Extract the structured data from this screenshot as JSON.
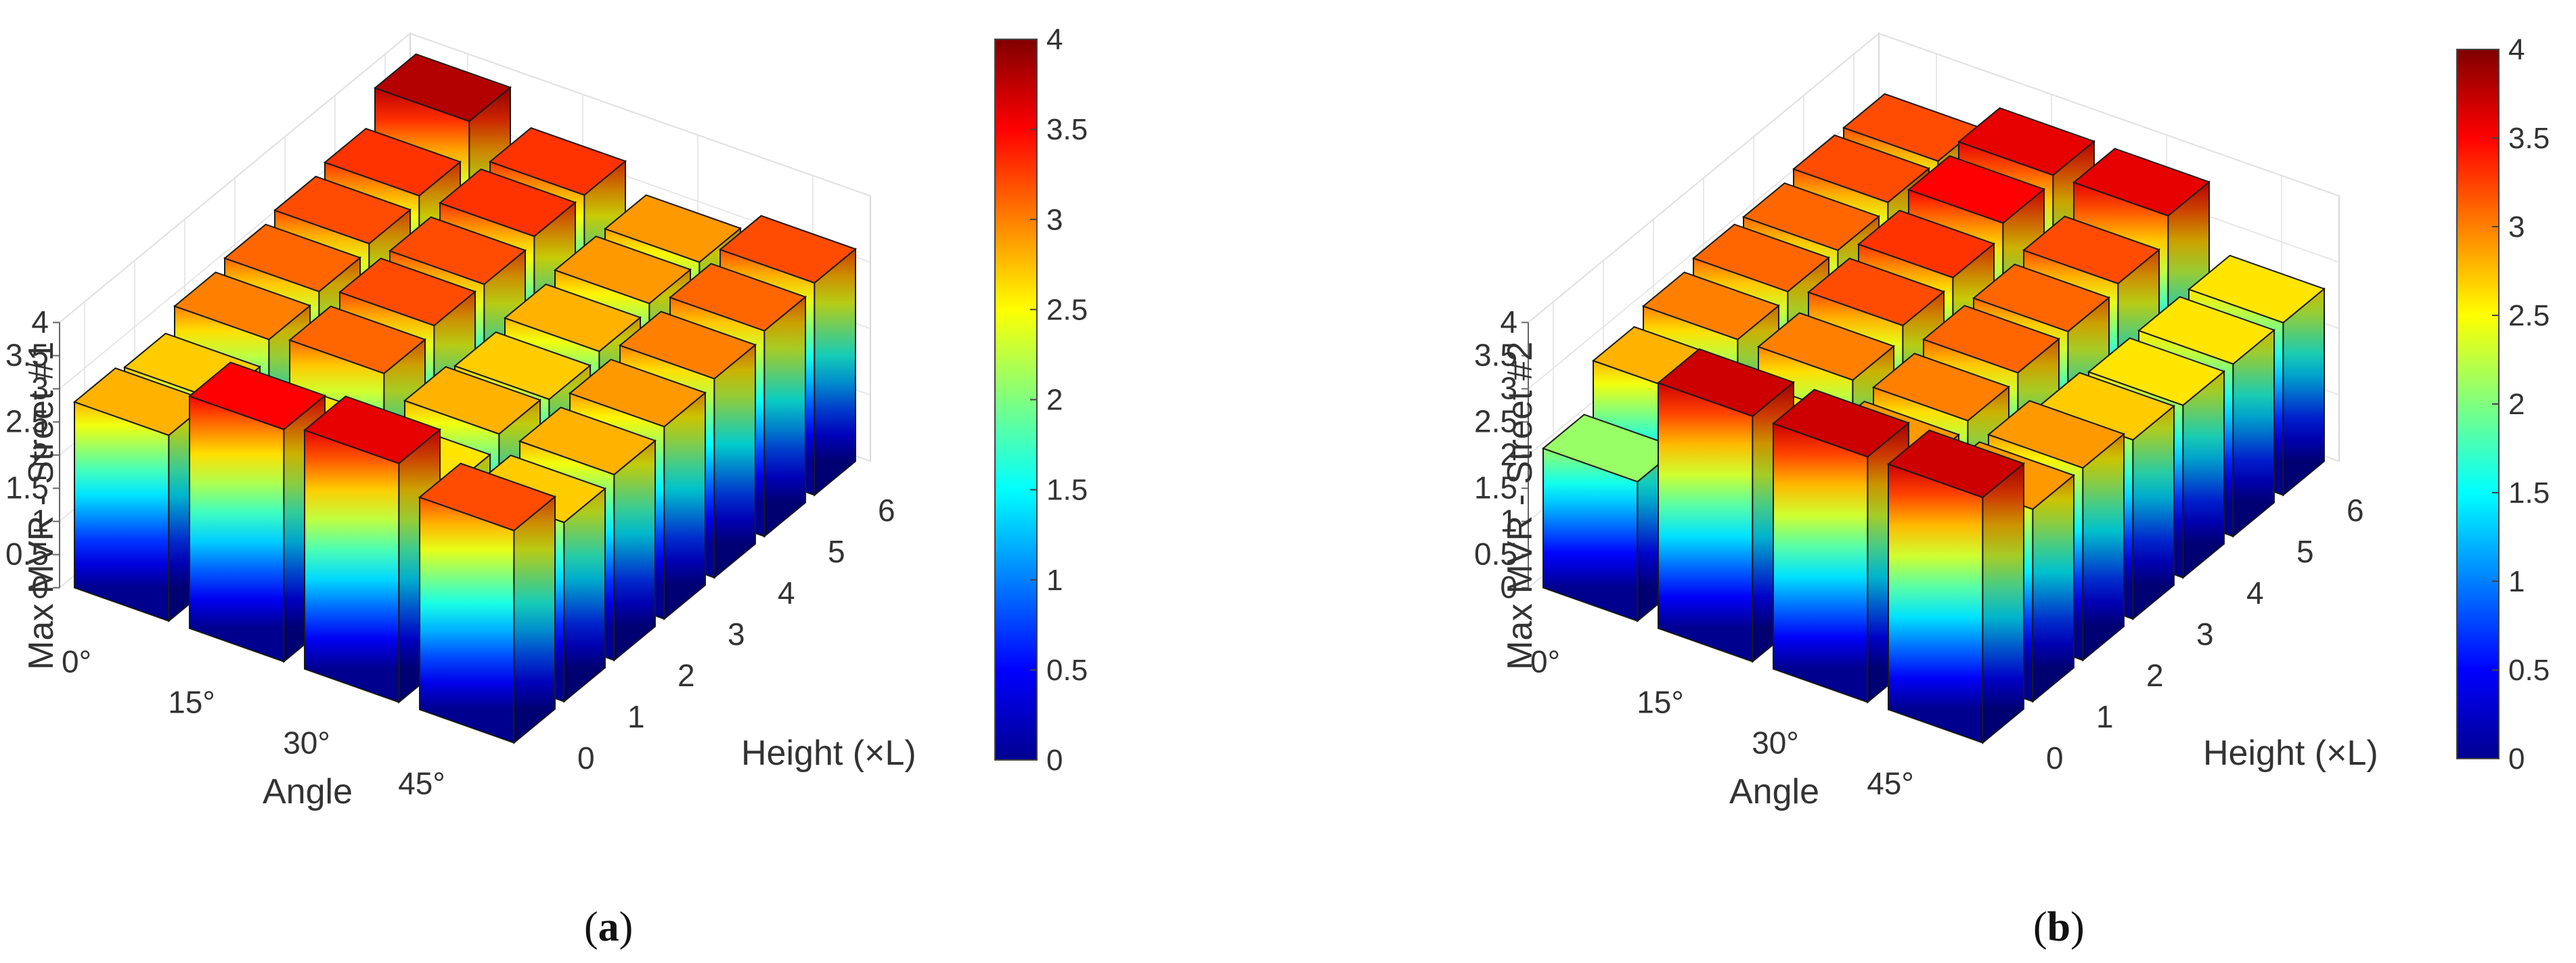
{
  "chart_data": [
    {
      "type": "bar3d",
      "panel_label": "a",
      "zlabel": "Max MVR - Street #1",
      "xlabel": "Angle",
      "ylabel": "Height (×L)",
      "angle_ticks": [
        "0°",
        "15°",
        "30°",
        "45°"
      ],
      "height_ticks": [
        "0",
        "1",
        "2",
        "3",
        "4",
        "5",
        "6"
      ],
      "z_ticks": [
        "0",
        "0.5",
        "1",
        "1.5",
        "2",
        "2.5",
        "3",
        "3.5",
        "4"
      ],
      "zlim": [
        0,
        4
      ],
      "colorbar": {
        "ticks": [
          "0",
          "0.5",
          "1",
          "1.5",
          "2",
          "2.5",
          "3",
          "3.5",
          "4"
        ],
        "range": [
          0,
          4
        ]
      },
      "series": [
        {
          "name": "0°",
          "values": [
            2.8,
            2.7,
            3.0,
            3.1,
            3.2,
            3.3,
            3.8
          ]
        },
        {
          "name": "15°",
          "values": [
            3.5,
            2.6,
            3.1,
            3.2,
            3.2,
            3.3,
            3.3
          ]
        },
        {
          "name": "30°",
          "values": [
            3.6,
            2.6,
            2.8,
            2.7,
            2.8,
            2.9,
            2.9
          ]
        },
        {
          "name": "45°",
          "values": [
            3.2,
            2.7,
            2.8,
            2.9,
            3.0,
            3.1,
            3.2
          ]
        }
      ]
    },
    {
      "type": "bar3d",
      "panel_label": "b",
      "zlabel": "Max MVR - Street #2",
      "xlabel": "Angle",
      "ylabel": "Height (×L)",
      "angle_ticks": [
        "0°",
        "15°",
        "30°",
        "45°"
      ],
      "height_ticks": [
        "0",
        "1",
        "2",
        "3",
        "4",
        "5",
        "6"
      ],
      "z_ticks": [
        "0",
        "0.5",
        "1",
        "1.5",
        "2",
        "2.5",
        "3",
        "3.5",
        "4"
      ],
      "zlim": [
        0,
        4
      ],
      "colorbar": {
        "ticks": [
          "0",
          "0.5",
          "1",
          "1.5",
          "2",
          "2.5",
          "3",
          "3.5",
          "4"
        ],
        "range": [
          0,
          4
        ]
      },
      "series": [
        {
          "name": "0°",
          "values": [
            2.1,
            2.8,
            3.0,
            3.1,
            3.1,
            3.2,
            3.2
          ]
        },
        {
          "name": "15°",
          "values": [
            3.7,
            2.6,
            3.0,
            3.2,
            3.3,
            3.5,
            3.6
          ]
        },
        {
          "name": "30°",
          "values": [
            3.7,
            2.9,
            3.0,
            3.1,
            3.1,
            3.2,
            3.6
          ]
        },
        {
          "name": "45°",
          "values": [
            3.7,
            2.9,
            2.9,
            2.7,
            2.6,
            2.6,
            2.6
          ]
        }
      ]
    }
  ]
}
